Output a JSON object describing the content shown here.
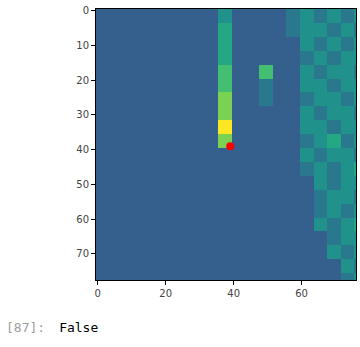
{
  "chart_data": {
    "type": "heatmap",
    "color": "viridis",
    "zlim": [
      0,
      10
    ],
    "x": [
      1.5,
      5.5,
      9.5,
      13.5,
      17.5,
      21.5,
      25.5,
      29.5,
      33.5,
      37.5,
      41.5,
      45.5,
      49.5,
      53.5,
      57.5,
      61.5,
      65.5,
      69.5,
      73.5,
      77.5
    ],
    "y": [
      1.5,
      5.5,
      9.5,
      13.5,
      17.5,
      21.5,
      25.5,
      29.5,
      33.5,
      37.5,
      41.5,
      45.5,
      49.5,
      53.5,
      57.5,
      61.5,
      65.5,
      69.5,
      73.5,
      77.5
    ],
    "z": [
      [
        3,
        3,
        3,
        3,
        3,
        3,
        3,
        3,
        3,
        5,
        3,
        3,
        3,
        3,
        4,
        5,
        4,
        5,
        4,
        5
      ],
      [
        3,
        3,
        3,
        3,
        3,
        3,
        3,
        3,
        3,
        6,
        3,
        3,
        3,
        3,
        4,
        5,
        5,
        4,
        5,
        4
      ],
      [
        3,
        3,
        3,
        3,
        3,
        3,
        3,
        3,
        3,
        6,
        3,
        3,
        3,
        3,
        3,
        5,
        4,
        5,
        4,
        5
      ],
      [
        3,
        3,
        3,
        3,
        3,
        3,
        3,
        3,
        3,
        6,
        3,
        3,
        3,
        3,
        3,
        4,
        5,
        4,
        5,
        5
      ],
      [
        3,
        3,
        3,
        3,
        3,
        3,
        3,
        3,
        3,
        7,
        3,
        3,
        7,
        3,
        3,
        5,
        4,
        5,
        5,
        4
      ],
      [
        3,
        3,
        3,
        3,
        3,
        3,
        3,
        3,
        3,
        7,
        3,
        3,
        4,
        3,
        3,
        5,
        5,
        4,
        5,
        5
      ],
      [
        3,
        3,
        3,
        3,
        3,
        3,
        3,
        3,
        3,
        8,
        3,
        3,
        4,
        3,
        3,
        4,
        5,
        5,
        4,
        5
      ],
      [
        3,
        3,
        3,
        3,
        3,
        3,
        3,
        3,
        3,
        8,
        3,
        3,
        3,
        3,
        3,
        5,
        4,
        5,
        5,
        4
      ],
      [
        3,
        3,
        3,
        3,
        3,
        3,
        3,
        3,
        3,
        10,
        3,
        3,
        3,
        3,
        3,
        5,
        5,
        4,
        5,
        5
      ],
      [
        3,
        3,
        3,
        3,
        3,
        3,
        3,
        3,
        3,
        8,
        3,
        3,
        3,
        3,
        3,
        4,
        5,
        6,
        4,
        5
      ],
      [
        3,
        3,
        3,
        3,
        3,
        3,
        3,
        3,
        3,
        3,
        3,
        3,
        3,
        3,
        3,
        5,
        4,
        5,
        5,
        4
      ],
      [
        3,
        3,
        3,
        3,
        3,
        3,
        3,
        3,
        3,
        3,
        3,
        3,
        3,
        3,
        3,
        4,
        5,
        4,
        5,
        6
      ],
      [
        3,
        3,
        3,
        3,
        3,
        3,
        3,
        3,
        3,
        3,
        3,
        3,
        3,
        3,
        3,
        3,
        5,
        4,
        5,
        5
      ],
      [
        3,
        3,
        3,
        3,
        3,
        3,
        3,
        3,
        3,
        3,
        3,
        3,
        3,
        3,
        3,
        3,
        4,
        5,
        5,
        4
      ],
      [
        3,
        3,
        3,
        3,
        3,
        3,
        3,
        3,
        3,
        3,
        3,
        3,
        3,
        3,
        3,
        3,
        4,
        5,
        4,
        5
      ],
      [
        3,
        3,
        3,
        3,
        3,
        3,
        3,
        3,
        3,
        3,
        3,
        3,
        3,
        3,
        3,
        3,
        5,
        4,
        5,
        6
      ],
      [
        3,
        3,
        3,
        3,
        3,
        3,
        3,
        3,
        3,
        3,
        3,
        3,
        3,
        3,
        3,
        3,
        3,
        4,
        5,
        5
      ],
      [
        3,
        3,
        3,
        3,
        3,
        3,
        3,
        3,
        3,
        3,
        3,
        3,
        3,
        3,
        3,
        3,
        3,
        5,
        4,
        5
      ],
      [
        3,
        3,
        3,
        3,
        3,
        3,
        3,
        3,
        3,
        3,
        3,
        3,
        3,
        3,
        3,
        3,
        3,
        3,
        5,
        4
      ],
      [
        3,
        3,
        3,
        3,
        3,
        3,
        3,
        3,
        3,
        3,
        3,
        3,
        3,
        3,
        3,
        3,
        3,
        3,
        4,
        5
      ]
    ],
    "points": [
      {
        "x": 39,
        "y": 39,
        "color": "red"
      }
    ],
    "xlim": [
      -0.5,
      76
    ],
    "ylim": [
      77.5,
      -0.5
    ],
    "xticks": [
      0,
      20,
      40,
      60
    ],
    "yticks": [
      0,
      10,
      20,
      30,
      40,
      50,
      60,
      70
    ]
  },
  "output": {
    "prompt": "[87]:",
    "text": "False"
  }
}
